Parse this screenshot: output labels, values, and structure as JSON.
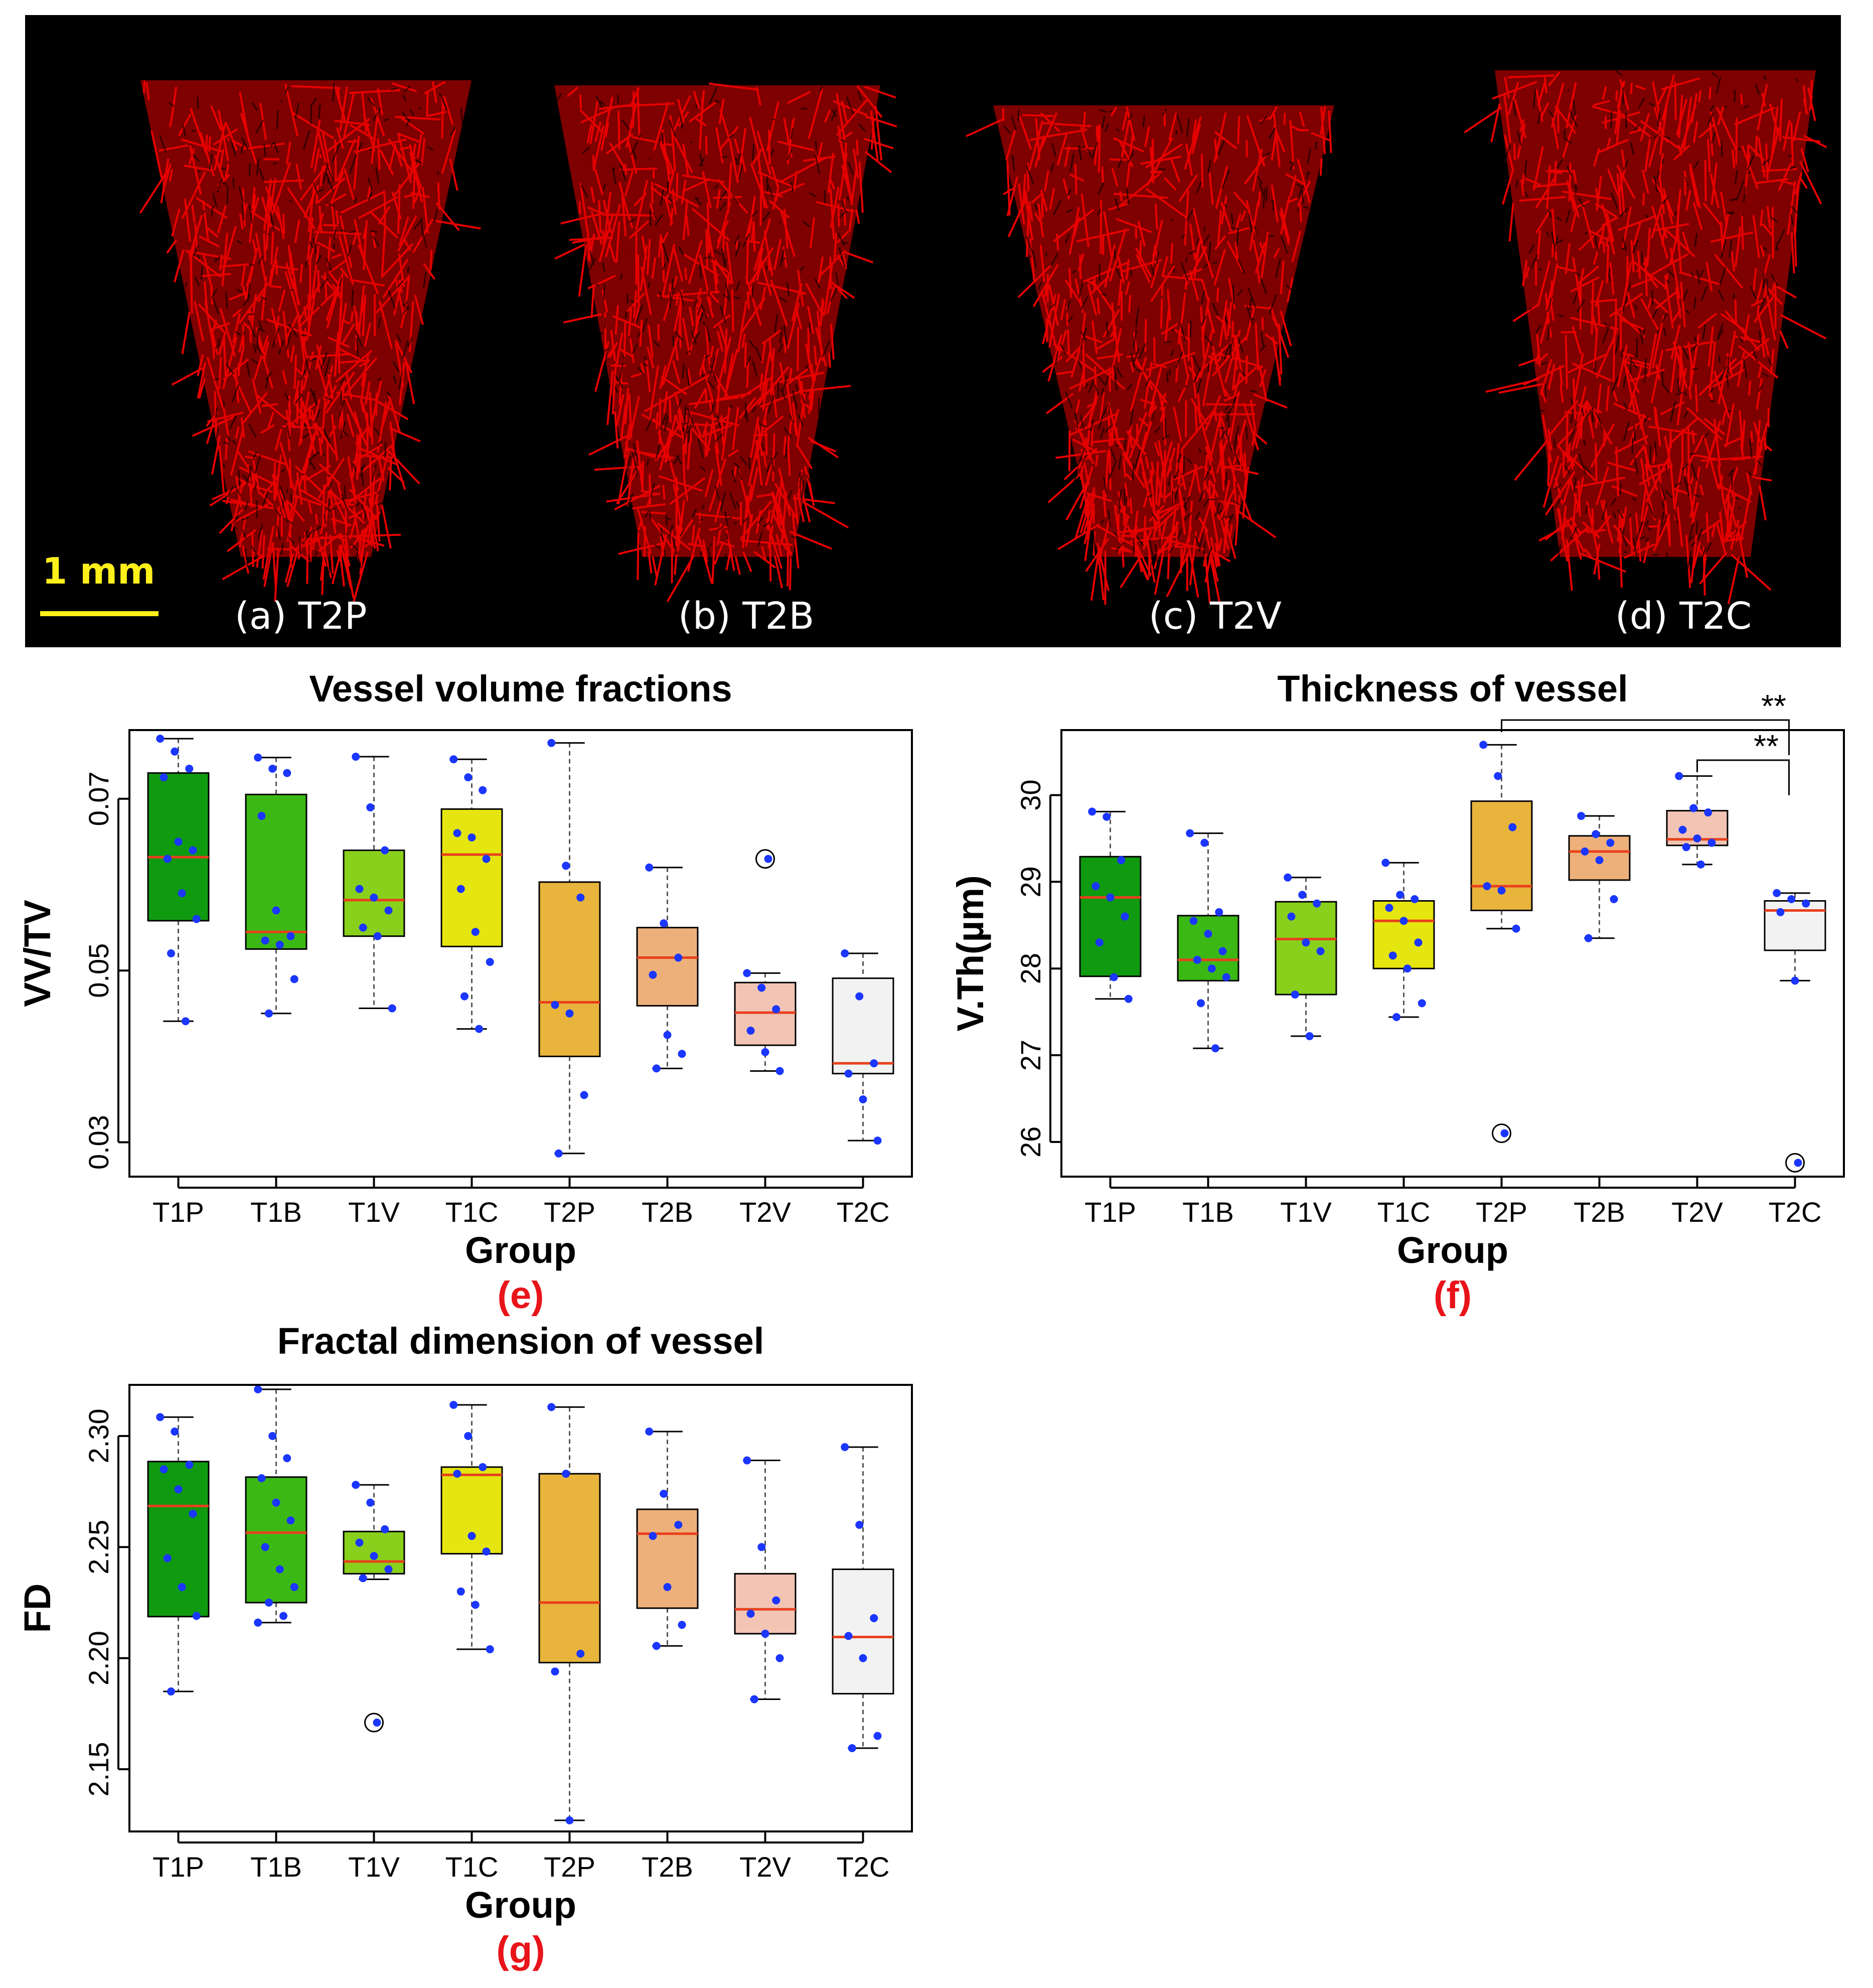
{
  "top_panel": {
    "scale_bar_label": "1 mm",
    "panels": [
      {
        "label": "(a) T2P"
      },
      {
        "label": "(b) T2B"
      },
      {
        "label": "(c) T2V"
      },
      {
        "label": "(d) T2C"
      }
    ],
    "vessel_color": "#e60000"
  },
  "chart_data": [
    {
      "type": "box",
      "title": "Vessel volume fractions",
      "xlabel": "Group",
      "ylabel": "VV/TV",
      "panel_tag": "(e)",
      "ylim": [
        0.026,
        0.078
      ],
      "yticks": [
        0.03,
        0.05,
        0.07
      ],
      "ytick_labels": [
        "0.03",
        "0.05",
        "0.07"
      ],
      "categories": [
        "T1P",
        "T1B",
        "T1V",
        "T1C",
        "T2P",
        "T2B",
        "T2V",
        "T2C"
      ],
      "colors": [
        "#109a10",
        "#3cb814",
        "#88d01c",
        "#e5e510",
        "#e8b43c",
        "#eeb07a",
        "#f2c4b4",
        "#f2f2f2"
      ],
      "boxes": [
        {
          "q1": 0.0558,
          "median": 0.0632,
          "q3": 0.073,
          "whisker_low": 0.0441,
          "whisker_high": 0.077,
          "points": [
            0.077,
            0.0755,
            0.0735,
            0.0725,
            0.065,
            0.064,
            0.063,
            0.059,
            0.056,
            0.052,
            0.0441
          ],
          "outliers": []
        },
        {
          "q1": 0.0525,
          "median": 0.0545,
          "q3": 0.0705,
          "whisker_low": 0.045,
          "whisker_high": 0.0748,
          "points": [
            0.0748,
            0.0735,
            0.073,
            0.068,
            0.057,
            0.054,
            0.0535,
            0.053,
            0.049,
            0.045
          ],
          "outliers": []
        },
        {
          "q1": 0.054,
          "median": 0.0582,
          "q3": 0.064,
          "whisker_low": 0.0456,
          "whisker_high": 0.0749,
          "points": [
            0.0749,
            0.069,
            0.064,
            0.0595,
            0.0585,
            0.057,
            0.055,
            0.054,
            0.0456
          ],
          "outliers": []
        },
        {
          "q1": 0.0528,
          "median": 0.0635,
          "q3": 0.0688,
          "whisker_low": 0.0432,
          "whisker_high": 0.0746,
          "points": [
            0.0746,
            0.0725,
            0.071,
            0.066,
            0.0655,
            0.063,
            0.0595,
            0.0545,
            0.051,
            0.047,
            0.0432
          ],
          "outliers": []
        },
        {
          "q1": 0.04,
          "median": 0.0463,
          "q3": 0.0603,
          "whisker_low": 0.0287,
          "whisker_high": 0.0765,
          "points": [
            0.0765,
            0.0622,
            0.0585,
            0.046,
            0.045,
            0.0355,
            0.0287
          ],
          "outliers": []
        },
        {
          "q1": 0.0459,
          "median": 0.0515,
          "q3": 0.055,
          "whisker_low": 0.0386,
          "whisker_high": 0.062,
          "points": [
            0.062,
            0.0555,
            0.0515,
            0.0495,
            0.0425,
            0.0403,
            0.0386
          ],
          "outliers": []
        },
        {
          "q1": 0.0413,
          "median": 0.0451,
          "q3": 0.0486,
          "whisker_low": 0.0383,
          "whisker_high": 0.0497,
          "points": [
            0.0497,
            0.048,
            0.0455,
            0.043,
            0.0405,
            0.0383
          ],
          "outliers": [
            0.063
          ]
        },
        {
          "q1": 0.038,
          "median": 0.0392,
          "q3": 0.0491,
          "whisker_low": 0.0302,
          "whisker_high": 0.052,
          "points": [
            0.052,
            0.047,
            0.0392,
            0.038,
            0.035,
            0.0302
          ],
          "outliers": []
        }
      ],
      "annotations": []
    },
    {
      "type": "box",
      "title": "Thickness of vessel",
      "xlabel": "Group",
      "ylabel": "V.Th(µm)",
      "panel_tag": "(f)",
      "ylim": [
        25.6,
        30.75
      ],
      "yticks": [
        26,
        27,
        28,
        29,
        30
      ],
      "ytick_labels": [
        "26",
        "27",
        "28",
        "29",
        "30"
      ],
      "categories": [
        "T1P",
        "T1B",
        "T1V",
        "T1C",
        "T2P",
        "T2B",
        "T2V",
        "T2C"
      ],
      "colors": [
        "#109a10",
        "#3cb814",
        "#88d01c",
        "#e5e510",
        "#e8b43c",
        "#eeb07a",
        "#f2c4b4",
        "#f2f2f2"
      ],
      "boxes": [
        {
          "q1": 27.91,
          "median": 28.82,
          "q3": 29.29,
          "whisker_low": 27.65,
          "whisker_high": 29.81,
          "points": [
            29.81,
            29.75,
            29.25,
            28.95,
            28.82,
            28.6,
            28.3,
            27.9,
            27.65
          ],
          "outliers": []
        },
        {
          "q1": 27.86,
          "median": 28.1,
          "q3": 28.61,
          "whisker_low": 27.08,
          "whisker_high": 29.56,
          "points": [
            29.56,
            29.45,
            28.65,
            28.55,
            28.4,
            28.2,
            28.1,
            28.0,
            27.9,
            27.6,
            27.08
          ],
          "outliers": []
        },
        {
          "q1": 27.7,
          "median": 28.34,
          "q3": 28.77,
          "whisker_low": 27.22,
          "whisker_high": 29.05,
          "points": [
            29.05,
            28.85,
            28.75,
            28.6,
            28.3,
            28.2,
            27.7,
            27.22
          ],
          "outliers": []
        },
        {
          "q1": 28.0,
          "median": 28.55,
          "q3": 28.78,
          "whisker_low": 27.44,
          "whisker_high": 29.22,
          "points": [
            29.22,
            28.85,
            28.8,
            28.7,
            28.55,
            28.3,
            28.15,
            28.0,
            27.6,
            27.44
          ],
          "outliers": []
        },
        {
          "q1": 28.67,
          "median": 28.95,
          "q3": 29.93,
          "whisker_low": 28.46,
          "whisker_high": 30.58,
          "points": [
            30.58,
            30.22,
            29.63,
            28.95,
            28.9,
            28.46
          ],
          "outliers": [
            26.1
          ]
        },
        {
          "q1": 29.02,
          "median": 29.35,
          "q3": 29.53,
          "whisker_low": 28.35,
          "whisker_high": 29.76,
          "points": [
            29.76,
            29.55,
            29.45,
            29.35,
            29.25,
            28.8,
            28.35
          ],
          "outliers": []
        },
        {
          "q1": 29.42,
          "median": 29.49,
          "q3": 29.82,
          "whisker_low": 29.2,
          "whisker_high": 30.22,
          "points": [
            30.22,
            29.85,
            29.8,
            29.6,
            29.5,
            29.45,
            29.4,
            29.2
          ],
          "outliers": []
        },
        {
          "q1": 28.21,
          "median": 28.67,
          "q3": 28.78,
          "whisker_low": 27.86,
          "whisker_high": 28.87,
          "points": [
            28.87,
            28.8,
            28.75,
            28.65,
            27.86
          ],
          "outliers": [
            25.76
          ]
        }
      ],
      "annotations": [
        {
          "label": "**",
          "from": "T2P",
          "to": "T2C"
        },
        {
          "label": "**",
          "from": "T2V",
          "to": "T2C"
        }
      ]
    },
    {
      "type": "box",
      "title": "Fractal dimension of vessel",
      "xlabel": "Group",
      "ylabel": "FD",
      "panel_tag": "(g)",
      "ylim": [
        2.122,
        2.323
      ],
      "yticks": [
        2.15,
        2.2,
        2.25,
        2.3
      ],
      "ytick_labels": [
        "2.15",
        "2.20",
        "2.25",
        "2.30"
      ],
      "categories": [
        "T1P",
        "T1B",
        "T1V",
        "T1C",
        "T2P",
        "T2B",
        "T2V",
        "T2C"
      ],
      "colors": [
        "#109a10",
        "#3cb814",
        "#88d01c",
        "#e5e510",
        "#e8b43c",
        "#eeb07a",
        "#f2c4b4",
        "#f2f2f2"
      ],
      "boxes": [
        {
          "q1": 2.2187,
          "median": 2.2685,
          "q3": 2.2885,
          "whisker_low": 2.185,
          "whisker_high": 2.3085,
          "points": [
            2.3085,
            2.302,
            2.287,
            2.285,
            2.276,
            2.265,
            2.245,
            2.232,
            2.219,
            2.185
          ],
          "outliers": []
        },
        {
          "q1": 2.225,
          "median": 2.2565,
          "q3": 2.2815,
          "whisker_low": 2.216,
          "whisker_high": 2.321,
          "points": [
            2.321,
            2.3,
            2.29,
            2.281,
            2.27,
            2.262,
            2.25,
            2.24,
            2.232,
            2.225,
            2.219,
            2.216
          ],
          "outliers": []
        },
        {
          "q1": 2.238,
          "median": 2.2435,
          "q3": 2.257,
          "whisker_low": 2.2355,
          "whisker_high": 2.278,
          "points": [
            2.278,
            2.27,
            2.258,
            2.252,
            2.246,
            2.24,
            2.236
          ],
          "outliers": [
            2.171
          ]
        },
        {
          "q1": 2.247,
          "median": 2.2825,
          "q3": 2.286,
          "whisker_low": 2.204,
          "whisker_high": 2.314,
          "points": [
            2.314,
            2.3,
            2.286,
            2.283,
            2.255,
            2.248,
            2.23,
            2.224,
            2.204
          ],
          "outliers": []
        },
        {
          "q1": 2.198,
          "median": 2.225,
          "q3": 2.283,
          "whisker_low": 2.127,
          "whisker_high": 2.313,
          "points": [
            2.313,
            2.283,
            2.202,
            2.194,
            2.127
          ],
          "outliers": []
        },
        {
          "q1": 2.2225,
          "median": 2.256,
          "q3": 2.267,
          "whisker_low": 2.2055,
          "whisker_high": 2.302,
          "points": [
            2.302,
            2.274,
            2.26,
            2.255,
            2.232,
            2.215,
            2.2055
          ],
          "outliers": []
        },
        {
          "q1": 2.211,
          "median": 2.222,
          "q3": 2.238,
          "whisker_low": 2.1815,
          "whisker_high": 2.289,
          "points": [
            2.289,
            2.25,
            2.226,
            2.22,
            2.211,
            2.2,
            2.1815
          ],
          "outliers": []
        },
        {
          "q1": 2.184,
          "median": 2.2095,
          "q3": 2.24,
          "whisker_low": 2.1595,
          "whisker_high": 2.295,
          "points": [
            2.295,
            2.26,
            2.218,
            2.21,
            2.2,
            2.165,
            2.1595
          ],
          "outliers": []
        }
      ],
      "annotations": []
    }
  ]
}
